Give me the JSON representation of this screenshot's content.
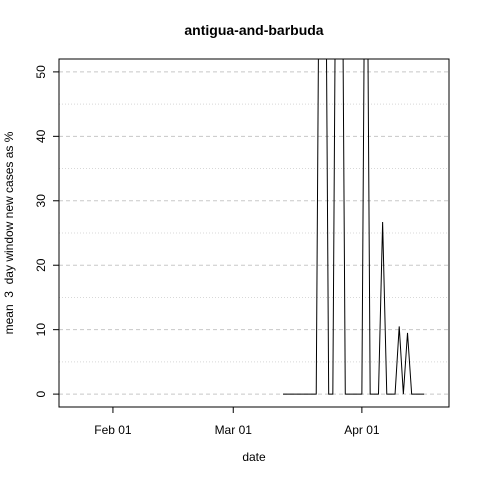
{
  "chart_data": {
    "type": "line",
    "title": "antigua-and-barbuda",
    "xlabel": "date",
    "ylabel": "mean  3  day window new cases as %",
    "x_axis": {
      "type": "date",
      "range": [
        "2020-01-19",
        "2020-04-22"
      ],
      "ticks": [
        {
          "date": "2020-02-01",
          "label": "Feb 01"
        },
        {
          "date": "2020-03-01",
          "label": "Mar 01"
        },
        {
          "date": "2020-04-01",
          "label": "Apr 01"
        }
      ]
    },
    "y_axis": {
      "range": [
        -2,
        52
      ],
      "ticks": [
        0,
        10,
        20,
        30,
        40,
        50
      ],
      "tick_labels": [
        "0",
        "10",
        "20",
        "30",
        "40",
        "50"
      ]
    },
    "grid": {
      "horizontal": true,
      "style": "dashed",
      "minor": [
        5,
        15,
        25,
        35,
        45
      ]
    },
    "series": [
      {
        "color": "#000000",
        "points": [
          [
            "2020-03-13",
            0
          ],
          [
            "2020-03-14",
            0
          ],
          [
            "2020-03-15",
            0
          ],
          [
            "2020-03-16",
            0
          ],
          [
            "2020-03-17",
            0
          ],
          [
            "2020-03-18",
            0
          ],
          [
            "2020-03-19",
            0
          ],
          [
            "2020-03-20",
            0
          ],
          [
            "2020-03-21",
            0
          ],
          [
            "2020-03-22",
            100
          ],
          [
            "2020-03-23",
            100
          ],
          [
            "2020-03-24",
            0
          ],
          [
            "2020-03-25",
            0
          ],
          [
            "2020-03-26",
            100
          ],
          [
            "2020-03-27",
            100
          ],
          [
            "2020-03-28",
            0
          ],
          [
            "2020-03-29",
            0
          ],
          [
            "2020-03-30",
            0
          ],
          [
            "2020-03-31",
            0
          ],
          [
            "2020-04-01",
            0
          ],
          [
            "2020-04-02",
            100
          ],
          [
            "2020-04-03",
            0
          ],
          [
            "2020-04-04",
            0
          ],
          [
            "2020-04-05",
            0
          ],
          [
            "2020-04-06",
            26.7
          ],
          [
            "2020-04-07",
            0
          ],
          [
            "2020-04-08",
            0
          ],
          [
            "2020-04-09",
            0
          ],
          [
            "2020-04-10",
            10.5
          ],
          [
            "2020-04-11",
            0
          ],
          [
            "2020-04-12",
            9.5
          ],
          [
            "2020-04-13",
            0
          ],
          [
            "2020-04-14",
            0
          ],
          [
            "2020-04-15",
            0
          ],
          [
            "2020-04-16",
            0
          ]
        ]
      }
    ]
  }
}
